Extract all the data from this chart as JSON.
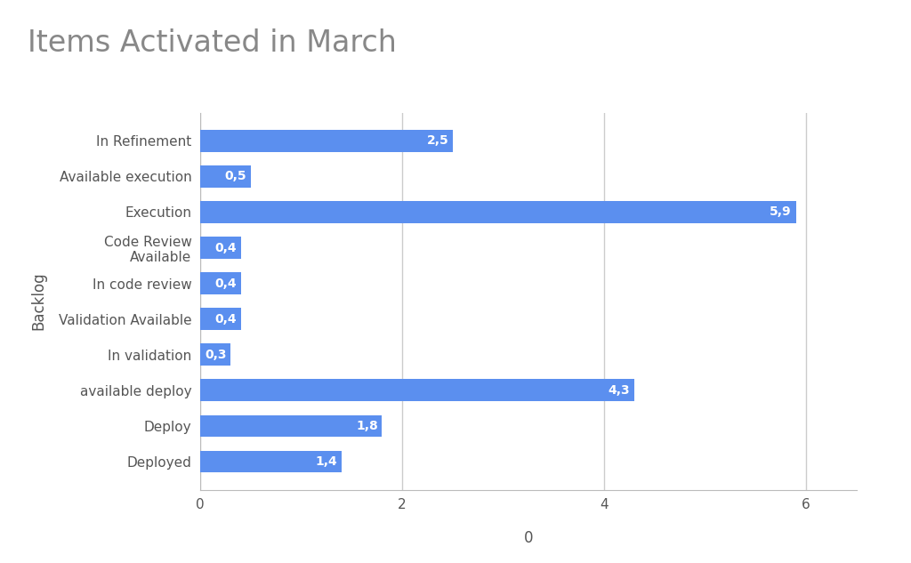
{
  "title": "Items Activated in March",
  "xlabel": "0",
  "ylabel": "Backlog",
  "categories": [
    "Deployed",
    "Deploy",
    "available deploy",
    "In validation",
    "Validation Available",
    "In code review",
    "Code Review\nAvailable",
    "Execution",
    "Available execution",
    "In Refinement"
  ],
  "values": [
    1.4,
    1.8,
    4.3,
    0.3,
    0.4,
    0.4,
    0.4,
    5.9,
    0.5,
    2.5
  ],
  "bar_color": "#5B8FEF",
  "bar_labels": [
    "1,4",
    "1,8",
    "4,3",
    "0,3",
    "0,4",
    "0,4",
    "0,4",
    "5,9",
    "0,5",
    "2,5"
  ],
  "xlim": [
    0,
    6.5
  ],
  "xticks": [
    0,
    2,
    4,
    6
  ],
  "title_fontsize": 24,
  "title_color": "#888888",
  "label_fontsize": 11,
  "bar_label_fontsize": 10,
  "ylabel_fontsize": 12,
  "xlabel_fontsize": 12,
  "background_color": "#ffffff",
  "grid_color": "#cccccc"
}
